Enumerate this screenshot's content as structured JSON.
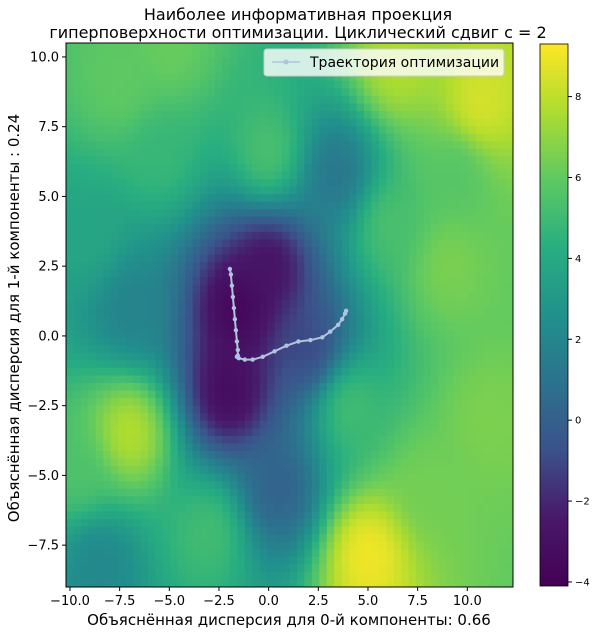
{
  "chart_data": {
    "type": "heatmap",
    "title_lines": [
      "Наиболее информативная проекция",
      "гиперповерхности оптимизации. Циклический сдвиг c = 2"
    ],
    "xlabel": "Объяснённая дисперсия для 0-й компоненты: 0.66",
    "ylabel": "Объяснённая дисперсия для 1-й компоненты : 0.24",
    "xlim": [
      -10.2,
      12.3
    ],
    "ylim": [
      -9.0,
      10.5
    ],
    "x_ticks": [
      -10.0,
      -7.5,
      -5.0,
      -2.5,
      0.0,
      2.5,
      5.0,
      7.5,
      10.0
    ],
    "x_tick_labels": [
      "−10.0",
      "−7.5",
      "−5.0",
      "−2.5",
      "0.0",
      "2.5",
      "5.0",
      "7.5",
      "10.0"
    ],
    "y_ticks": [
      -7.5,
      -5.0,
      -2.5,
      0.0,
      2.5,
      5.0,
      7.5,
      10.0
    ],
    "y_tick_labels": [
      "−7.5",
      "−5.0",
      "−2.5",
      "0.0",
      "2.5",
      "5.0",
      "7.5",
      "10.0"
    ],
    "colorbar": {
      "colormap": "viridis",
      "range": [
        -4.1,
        9.3
      ],
      "ticks": [
        -4,
        -2,
        0,
        2,
        4,
        6,
        8
      ],
      "tick_labels": [
        "−4",
        "−2",
        "0",
        "2",
        "4",
        "6",
        "8"
      ]
    },
    "legend": {
      "position": "top-right",
      "entries": [
        "Траектория оптимизации"
      ]
    },
    "grid": false,
    "surface_features": [
      {
        "x": 0.0,
        "y": 6.5,
        "value": 5.5
      },
      {
        "x": 10.6,
        "y": 8.2,
        "value": 8.6
      },
      {
        "x": 6.5,
        "y": 9.7,
        "value": 7.8
      },
      {
        "x": -5.0,
        "y": 10.3,
        "value": 6.2
      },
      {
        "x": -7.5,
        "y": 9.0,
        "value": 6.0
      },
      {
        "x": 9.0,
        "y": 2.5,
        "value": 6.6
      },
      {
        "x": 9.5,
        "y": 6.0,
        "value": 5.6
      },
      {
        "x": -7.0,
        "y": -3.5,
        "value": 8.0
      },
      {
        "x": -9.5,
        "y": -5.0,
        "value": 5.5
      },
      {
        "x": 5.0,
        "y": -7.8,
        "value": 9.2
      },
      {
        "x": 8.0,
        "y": -5.5,
        "value": 6.4
      },
      {
        "x": -3.0,
        "y": -7.0,
        "value": 5.2
      },
      {
        "x": 11.0,
        "y": -3.0,
        "value": 6.6
      },
      {
        "x": -9.0,
        "y": 3.5,
        "value": 3.8
      },
      {
        "x": 4.0,
        "y": -2.5,
        "value": 5.3
      },
      {
        "x": 6.0,
        "y": 4.0,
        "value": 5.4
      },
      {
        "x": -5.5,
        "y": 6.5,
        "value": 4.8
      },
      {
        "x": -1.5,
        "y": 1.0,
        "value": -3.9
      },
      {
        "x": -2.0,
        "y": -2.0,
        "value": -3.5
      },
      {
        "x": 0.0,
        "y": 2.5,
        "value": -3.0
      },
      {
        "x": 2.0,
        "y": -0.5,
        "value": -1.2
      },
      {
        "x": 0.5,
        "y": -5.5,
        "value": 0.0
      },
      {
        "x": 3.5,
        "y": 5.8,
        "value": 1.0
      },
      {
        "x": -7.0,
        "y": 1.0,
        "value": 1.8
      },
      {
        "x": -8.5,
        "y": -8.0,
        "value": 2.0
      }
    ],
    "series": [
      {
        "name": "Траектория оптимизации",
        "x": [
          -1.95,
          -1.9,
          -1.85,
          -1.8,
          -1.75,
          -1.7,
          -1.65,
          -1.6,
          -1.55,
          -1.55,
          -1.6,
          -1.5,
          -1.2,
          -0.8,
          -0.3,
          0.3,
          0.9,
          1.5,
          2.1,
          2.7,
          3.1,
          3.5,
          3.7,
          3.85,
          3.9
        ],
        "y": [
          2.4,
          2.2,
          1.8,
          1.4,
          1.0,
          0.6,
          0.2,
          -0.2,
          -0.5,
          -0.7,
          -0.75,
          -0.8,
          -0.85,
          -0.85,
          -0.75,
          -0.55,
          -0.35,
          -0.2,
          -0.15,
          -0.05,
          0.15,
          0.4,
          0.6,
          0.8,
          0.9
        ]
      }
    ]
  }
}
